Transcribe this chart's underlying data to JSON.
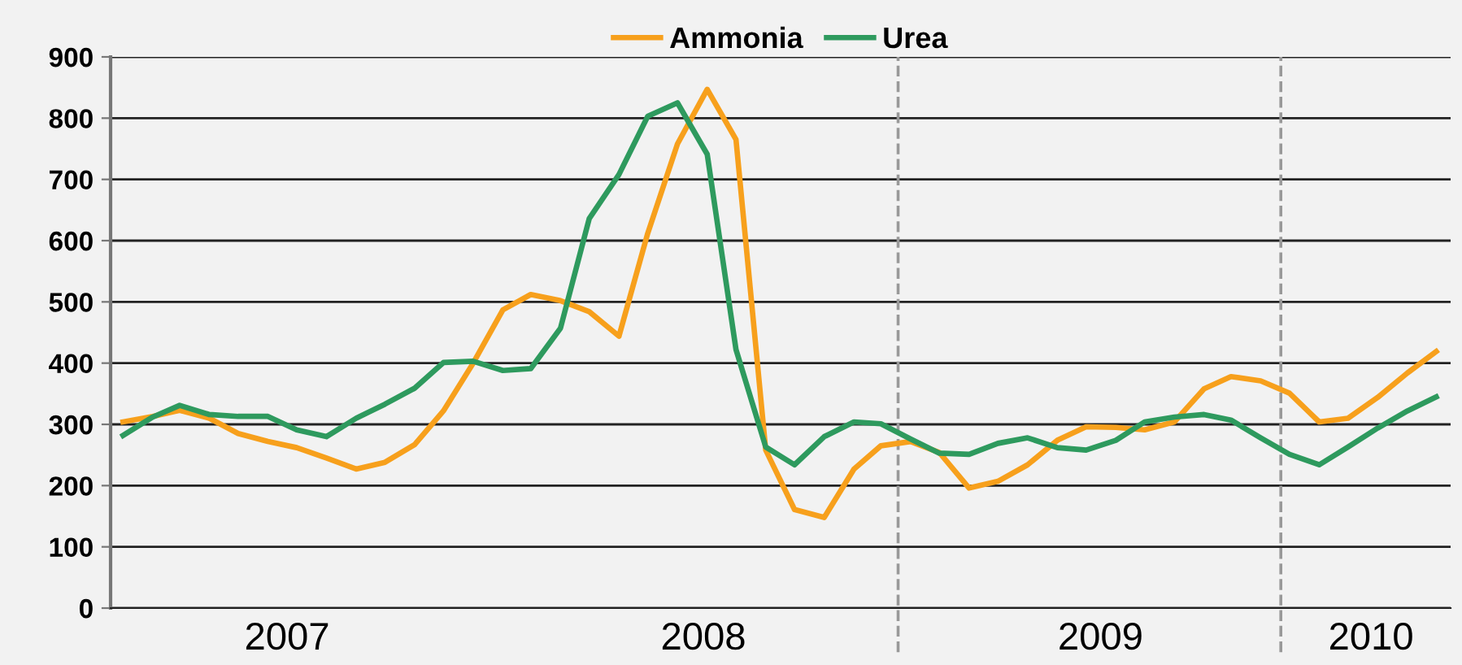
{
  "chart_data": {
    "type": "line",
    "x": [
      "2007-01",
      "2007-02",
      "2007-03",
      "2007-04",
      "2007-05",
      "2007-06",
      "2007-07",
      "2007-08",
      "2007-09",
      "2007-10",
      "2007-11",
      "2007-12",
      "2008-01",
      "2008-02",
      "2008-03",
      "2008-04",
      "2008-05",
      "2008-06",
      "2008-07",
      "2008-08",
      "2008-09",
      "2008-10",
      "2008-11",
      "2008-12",
      "2009-01",
      "2009-02",
      "2009-03",
      "2009-04",
      "2009-05",
      "2009-06",
      "2009-07",
      "2009-08",
      "2009-09",
      "2009-10",
      "2009-11",
      "2009-12",
      "2010-01",
      "2010-02",
      "2010-03",
      "2010-04",
      "2010-05",
      "2010-06",
      "2010-07",
      "2010-08",
      "2010-09",
      "2010-10"
    ],
    "series": [
      {
        "name": "Ammonia",
        "color": "#f7a01c",
        "values": [
          304,
          313,
          323,
          310,
          285,
          272,
          262,
          245,
          227,
          238,
          267,
          322,
          400,
          487,
          512,
          502,
          484,
          444,
          612,
          758,
          847,
          765,
          258,
          161,
          148,
          227,
          265,
          272,
          254,
          196,
          207,
          234,
          274,
          296,
          295,
          291,
          304,
          358,
          378,
          371,
          351,
          304,
          310,
          344,
          384,
          419
        ]
      },
      {
        "name": "Urea",
        "color": "#2e9a5e",
        "values": [
          282,
          312,
          331,
          316,
          313,
          313,
          291,
          280,
          310,
          333,
          359,
          401,
          403,
          388,
          391,
          457,
          636,
          708,
          803,
          825,
          741,
          422,
          263,
          234,
          280,
          304,
          301,
          276,
          253,
          251,
          269,
          278,
          262,
          258,
          274,
          304,
          312,
          316,
          307,
          278,
          251,
          234,
          263,
          294,
          322,
          345
        ]
      }
    ],
    "xlim": [
      "2006-12-19",
      "2010-10-16"
    ],
    "xticks": [
      {
        "value": "2007-06-21",
        "label": "2007"
      },
      {
        "value": "2008-08-28",
        "label": "2008"
      },
      {
        "value": "2009-10-16",
        "label": "2009"
      },
      {
        "value": "2010-07-25",
        "label": "2010"
      }
    ],
    "ylim": [
      0,
      900
    ],
    "yticks": [
      0,
      100,
      200,
      300,
      400,
      500,
      600,
      700,
      800,
      900
    ],
    "ref_lines": [
      {
        "axis": "x",
        "value": "2009-03-19",
        "color": "#999999",
        "line_style": "dashed"
      },
      {
        "axis": "x",
        "value": "2010-04-22",
        "color": "#999999",
        "line_style": "dashed"
      }
    ],
    "grid": "y",
    "legend": "top",
    "marker": "none",
    "line_style": "solid"
  }
}
